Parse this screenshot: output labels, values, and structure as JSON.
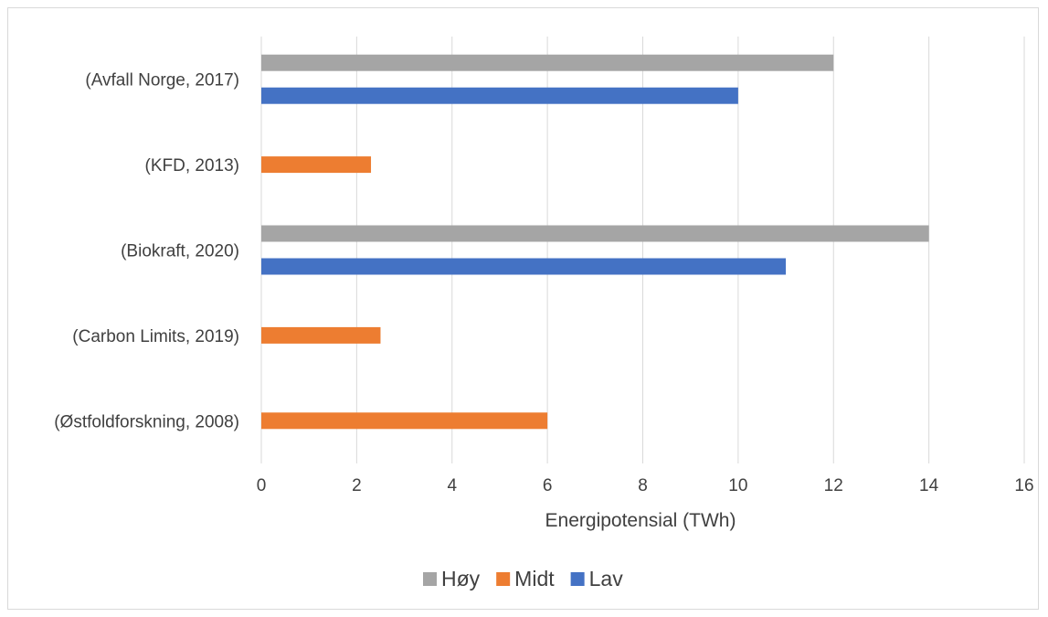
{
  "chart_data": {
    "type": "bar",
    "orientation": "horizontal",
    "categories": [
      "(Avfall Norge, 2017)",
      "(KFD, 2013)",
      "(Biokraft, 2020)",
      "(Carbon Limits, 2019)",
      "(Østfoldforskning, 2008)"
    ],
    "series": [
      {
        "name": "Høy",
        "color": "#a5a5a5",
        "values": [
          12,
          null,
          14,
          null,
          null
        ]
      },
      {
        "name": "Midt",
        "color": "#ed7d31",
        "values": [
          null,
          2.3,
          null,
          2.5,
          6
        ]
      },
      {
        "name": "Lav",
        "color": "#4472c4",
        "values": [
          10,
          null,
          11,
          null,
          null
        ]
      }
    ],
    "xlabel": "Energipotensial (TWh)",
    "xlim": [
      0,
      16
    ],
    "xticks": [
      "0",
      "2",
      "4",
      "6",
      "8",
      "10",
      "12",
      "14",
      "16"
    ],
    "grid": "vertical",
    "legend": "bottom"
  }
}
